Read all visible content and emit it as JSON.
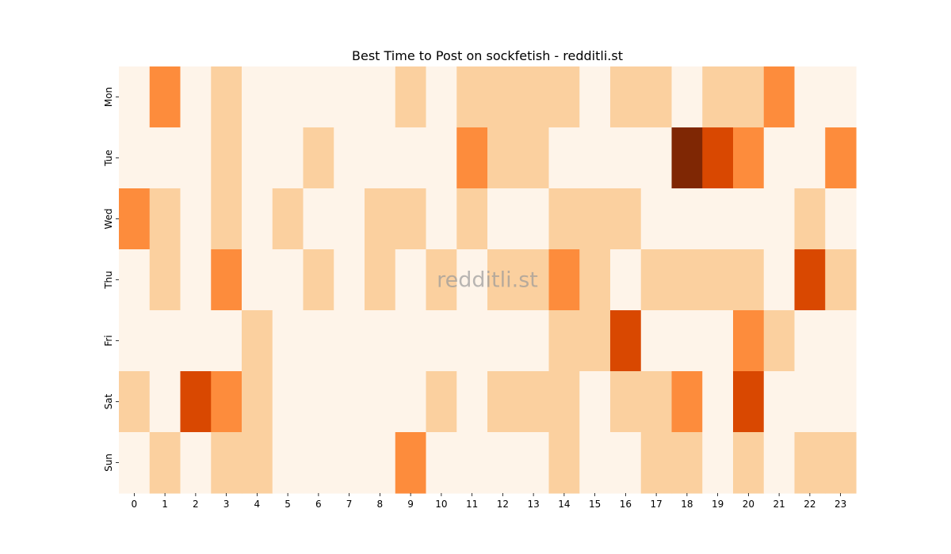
{
  "chart_data": {
    "type": "heatmap",
    "title": "Best Time to Post on sockfetish - redditli.st",
    "watermark": "redditli.st",
    "x_categories": [
      "0",
      "1",
      "2",
      "3",
      "4",
      "5",
      "6",
      "7",
      "8",
      "9",
      "10",
      "11",
      "12",
      "13",
      "14",
      "15",
      "16",
      "17",
      "18",
      "19",
      "20",
      "21",
      "22",
      "23"
    ],
    "y_categories": [
      "Mon",
      "Tue",
      "Wed",
      "Thu",
      "Fri",
      "Sat",
      "Sun"
    ],
    "values": [
      [
        0,
        2,
        0,
        1,
        0,
        0,
        0,
        0,
        0,
        1,
        0,
        1,
        1,
        1,
        1,
        0,
        1,
        1,
        0,
        1,
        1,
        2,
        0,
        0
      ],
      [
        0,
        0,
        0,
        1,
        0,
        0,
        1,
        0,
        0,
        0,
        0,
        2,
        1,
        1,
        0,
        0,
        0,
        0,
        4,
        3,
        2,
        0,
        0,
        2
      ],
      [
        2,
        1,
        0,
        1,
        0,
        1,
        0,
        0,
        1,
        1,
        0,
        1,
        0,
        0,
        1,
        1,
        1,
        0,
        0,
        0,
        0,
        0,
        1,
        0
      ],
      [
        0,
        1,
        0,
        2,
        0,
        0,
        1,
        0,
        1,
        0,
        1,
        0,
        1,
        1,
        2,
        1,
        0,
        1,
        1,
        1,
        1,
        0,
        3,
        1
      ],
      [
        0,
        0,
        0,
        0,
        1,
        0,
        0,
        0,
        0,
        0,
        0,
        0,
        0,
        0,
        1,
        1,
        3,
        0,
        0,
        0,
        2,
        1,
        0,
        0
      ],
      [
        1,
        0,
        3,
        2,
        1,
        0,
        0,
        0,
        0,
        0,
        1,
        0,
        1,
        1,
        1,
        0,
        1,
        1,
        2,
        0,
        3,
        0,
        0,
        0
      ],
      [
        0,
        1,
        0,
        1,
        1,
        0,
        0,
        0,
        0,
        2,
        0,
        0,
        0,
        0,
        1,
        0,
        0,
        1,
        1,
        0,
        1,
        0,
        1,
        1
      ]
    ],
    "value_range": [
      0,
      4
    ],
    "colormap": "Oranges",
    "level_colors": [
      "#fef4e9",
      "#fbd09f",
      "#fd8c3c",
      "#d94801",
      "#7f2704"
    ],
    "grid": false,
    "legend": "none"
  }
}
